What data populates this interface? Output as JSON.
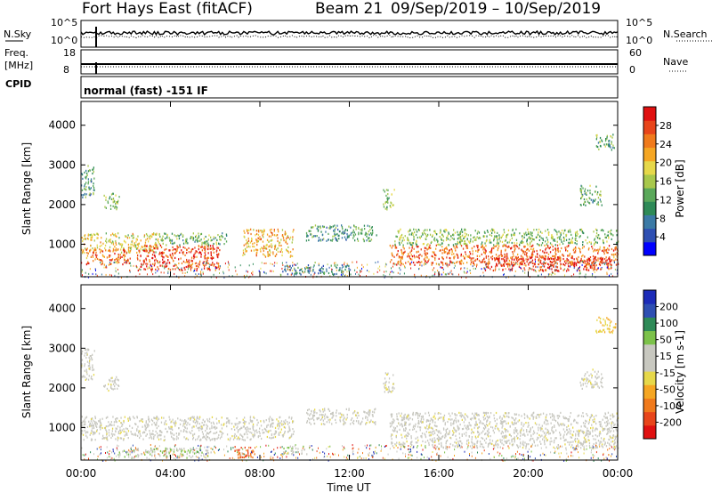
{
  "header": {
    "radar": "Fort Hays East (fitACF)",
    "beam": "Beam 21",
    "date_range": "09/Sep/2019 – 10/Sep/2019"
  },
  "noise_panel": {
    "left_label": "N.Sky",
    "left_ticks": [
      "10^5",
      "10^0"
    ],
    "right_label": "N.Search",
    "right_ticks": [
      "10^5",
      "10^0"
    ]
  },
  "freq_panel": {
    "left_label_line1": "Freq.",
    "left_label_line2": "[MHz]",
    "left_ticks": [
      "18",
      "8"
    ],
    "right_label": "Nave",
    "right_ticks": [
      "60",
      "0"
    ]
  },
  "cpid_panel": {
    "label": "CPID",
    "text": "normal (fast) -151 IF"
  },
  "colors": {
    "power_scale": [
      "#0000ff",
      "#2e4fb2",
      "#3b7aa6",
      "#2e8a57",
      "#5aa85a",
      "#a8c84c",
      "#e6d84a",
      "#f5a623",
      "#f07a1c",
      "#e8451a",
      "#e01010"
    ],
    "velocity_scale": [
      "#1c2bb8",
      "#2e4fb2",
      "#2e8a57",
      "#7cc24a",
      "#c8c8c0",
      "#c8c8c0",
      "#e6d84a",
      "#f5a623",
      "#f07a1c",
      "#e8451a",
      "#e01010"
    ]
  },
  "chart_data": [
    {
      "type": "heatmap",
      "title": "",
      "xlabel": "",
      "ylabel": "Slant Range [km]",
      "x_ticks": [
        "00:00",
        "04:00",
        "08:00",
        "12:00",
        "16:00",
        "20:00",
        "00:00"
      ],
      "y_ticks": [
        1000,
        2000,
        3000,
        4000
      ],
      "xlim_hours": [
        0,
        24
      ],
      "ylim": [
        180,
        4600
      ],
      "colorbar": {
        "label": "Power [dB]",
        "ticks": [
          "4",
          "8",
          "12",
          "16",
          "20",
          "24",
          "28"
        ],
        "range": [
          0,
          30
        ]
      },
      "regions": [
        {
          "t": [
            0.0,
            0.6
          ],
          "r": [
            2200,
            3000
          ],
          "value": 10
        },
        {
          "t": [
            0.0,
            3.5
          ],
          "r": [
            800,
            1300
          ],
          "value": 18
        },
        {
          "t": [
            0.2,
            2.2
          ],
          "r": [
            500,
            900
          ],
          "value": 24
        },
        {
          "t": [
            1.0,
            1.7
          ],
          "r": [
            1900,
            2300
          ],
          "value": 14
        },
        {
          "t": [
            2.5,
            6.2
          ],
          "r": [
            350,
            1000
          ],
          "value": 26
        },
        {
          "t": [
            3.5,
            6.5
          ],
          "r": [
            1000,
            1300
          ],
          "value": 12
        },
        {
          "t": [
            7.2,
            9.5
          ],
          "r": [
            700,
            1400
          ],
          "value": 20
        },
        {
          "t": [
            9.0,
            12.0
          ],
          "r": [
            250,
            500
          ],
          "value": 8
        },
        {
          "t": [
            10.0,
            13.2
          ],
          "r": [
            1100,
            1500
          ],
          "value": 10
        },
        {
          "t": [
            13.5,
            14.0
          ],
          "r": [
            1900,
            2400
          ],
          "value": 14
        },
        {
          "t": [
            13.8,
            24.0
          ],
          "r": [
            500,
            1000
          ],
          "value": 24
        },
        {
          "t": [
            14.0,
            24.0
          ],
          "r": [
            1000,
            1400
          ],
          "value": 14
        },
        {
          "t": [
            18.0,
            23.7
          ],
          "r": [
            350,
            700
          ],
          "value": 28
        },
        {
          "t": [
            23.0,
            23.9
          ],
          "r": [
            3400,
            3800
          ],
          "value": 12
        },
        {
          "t": [
            22.3,
            23.3
          ],
          "r": [
            2000,
            2500
          ],
          "value": 12
        }
      ]
    },
    {
      "type": "heatmap",
      "title": "",
      "xlabel": "Time UT",
      "ylabel": "Slant Range [km]",
      "x_ticks": [
        "00:00",
        "04:00",
        "08:00",
        "12:00",
        "16:00",
        "20:00",
        "00:00"
      ],
      "y_ticks": [
        1000,
        2000,
        3000,
        4000
      ],
      "xlim_hours": [
        0,
        24
      ],
      "ylim": [
        180,
        4600
      ],
      "colorbar": {
        "label": "Velocity [m s-1]",
        "ticks": [
          "200",
          "100",
          "50",
          "15",
          "-15",
          "-50",
          "-100",
          "-200"
        ],
        "range": [
          -250,
          250
        ]
      },
      "regions": [
        {
          "t": [
            0.0,
            0.6
          ],
          "r": [
            2200,
            3000
          ],
          "value": 0
        },
        {
          "t": [
            0.0,
            9.5
          ],
          "r": [
            700,
            1300
          ],
          "value": 0
        },
        {
          "t": [
            1.0,
            1.7
          ],
          "r": [
            1900,
            2300
          ],
          "value": 0
        },
        {
          "t": [
            1.5,
            5.8
          ],
          "r": [
            250,
            500
          ],
          "value": 60
        },
        {
          "t": [
            6.8,
            7.8
          ],
          "r": [
            250,
            550
          ],
          "value": -150
        },
        {
          "t": [
            9.0,
            10.2
          ],
          "r": [
            350,
            550
          ],
          "value": 60
        },
        {
          "t": [
            10.0,
            13.2
          ],
          "r": [
            1100,
            1500
          ],
          "value": 0
        },
        {
          "t": [
            13.5,
            14.0
          ],
          "r": [
            1900,
            2400
          ],
          "value": 0
        },
        {
          "t": [
            13.8,
            24.0
          ],
          "r": [
            500,
            1400
          ],
          "value": 0
        },
        {
          "t": [
            22.3,
            23.3
          ],
          "r": [
            2000,
            2500
          ],
          "value": 0
        },
        {
          "t": [
            23.0,
            23.9
          ],
          "r": [
            3400,
            3800
          ],
          "value": -60
        }
      ]
    }
  ]
}
